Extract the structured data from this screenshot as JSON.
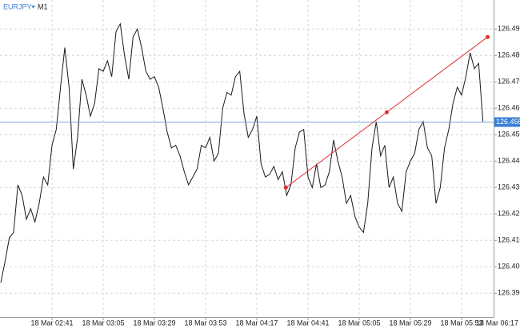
{
  "chart_data": {
    "type": "line",
    "symbol": "EURJPY",
    "timeframe": "M1",
    "color": "#1a1a1a",
    "grid": true,
    "categories": [
      null,
      null,
      null,
      null,
      null,
      null,
      null,
      null,
      null,
      null,
      null,
      null,
      "18 Mar 02:41",
      null,
      null,
      null,
      null,
      null,
      null,
      null,
      null,
      null,
      null,
      null,
      "18 Mar 03:05",
      null,
      null,
      null,
      null,
      null,
      null,
      null,
      null,
      null,
      null,
      null,
      "18 Mar 03:29",
      null,
      null,
      null,
      null,
      null,
      null,
      null,
      null,
      null,
      null,
      null,
      "18 Mar 03:53",
      null,
      null,
      null,
      null,
      null,
      null,
      null,
      null,
      null,
      null,
      null,
      "18 Mar 04:17",
      null,
      null,
      null,
      null,
      null,
      null,
      null,
      null,
      null,
      null,
      null,
      "18 Mar 04:41",
      null,
      null,
      null,
      null,
      null,
      null,
      null,
      null,
      null,
      null,
      null,
      "18 Mar 05:05",
      null,
      null,
      null,
      null,
      null,
      null,
      null,
      null,
      null,
      null,
      null,
      "18 Mar 05:29",
      null,
      null,
      null,
      null,
      null,
      null,
      null,
      null,
      null,
      null,
      null,
      "18 Mar 05:53",
      null,
      null,
      null,
      null,
      null,
      null,
      null,
      null,
      null,
      null,
      null,
      "18 Mar 06:17"
    ],
    "values": [
      126.394,
      126.402,
      126.411,
      126.413,
      126.431,
      126.427,
      126.418,
      126.422,
      126.417,
      126.424,
      126.434,
      126.431,
      126.446,
      126.452,
      126.468,
      126.483,
      126.468,
      126.437,
      126.449,
      126.471,
      126.465,
      126.457,
      126.462,
      126.475,
      126.474,
      126.478,
      126.472,
      126.489,
      126.492,
      126.48,
      126.471,
      126.487,
      126.49,
      126.483,
      126.474,
      126.471,
      126.472,
      126.468,
      126.46,
      126.451,
      126.445,
      126.446,
      126.442,
      126.436,
      126.431,
      126.434,
      126.437,
      126.446,
      126.445,
      126.449,
      126.44,
      126.443,
      126.46,
      126.466,
      126.465,
      126.472,
      126.474,
      126.458,
      126.449,
      126.452,
      126.457,
      126.439,
      126.434,
      126.435,
      126.438,
      126.433,
      126.436,
      126.427,
      126.431,
      126.445,
      126.451,
      126.452,
      126.434,
      126.43,
      126.439,
      126.43,
      126.431,
      126.436,
      126.448,
      126.44,
      126.434,
      126.424,
      126.427,
      126.419,
      126.415,
      126.413,
      126.424,
      126.445,
      126.455,
      126.442,
      126.446,
      126.43,
      126.434,
      126.424,
      126.421,
      126.436,
      126.44,
      126.443,
      126.452,
      126.455,
      126.445,
      126.442,
      126.424,
      126.43,
      126.445,
      126.452,
      126.462,
      126.468,
      126.465,
      126.472,
      126.481,
      126.475,
      126.477,
      126.455,
      null,
      null,
      null,
      null,
      null,
      null,
      null
    ],
    "ylim": [
      126.381,
      126.501
    ],
    "yticks": [
      {
        "value": 126.39,
        "label": "126.390"
      },
      {
        "value": 126.4,
        "label": "126.400"
      },
      {
        "value": 126.41,
        "label": "126.410"
      },
      {
        "value": 126.42,
        "label": "126.420"
      },
      {
        "value": 126.43,
        "label": "126.430"
      },
      {
        "value": 126.44,
        "label": "126.440"
      },
      {
        "value": 126.45,
        "label": "126.450"
      },
      {
        "value": 126.46,
        "label": "126.460"
      },
      {
        "value": 126.47,
        "label": "126.470"
      },
      {
        "value": 126.48,
        "label": "126.480"
      },
      {
        "value": 126.49,
        "label": "126.490"
      }
    ],
    "current_price": {
      "value": 126.455,
      "label": "126.455",
      "color": "#7ea6d8"
    },
    "trendline": {
      "x": [
        66.8,
        114.1
      ],
      "values": [
        126.43,
        126.487
      ],
      "color": "#e03030"
    }
  }
}
